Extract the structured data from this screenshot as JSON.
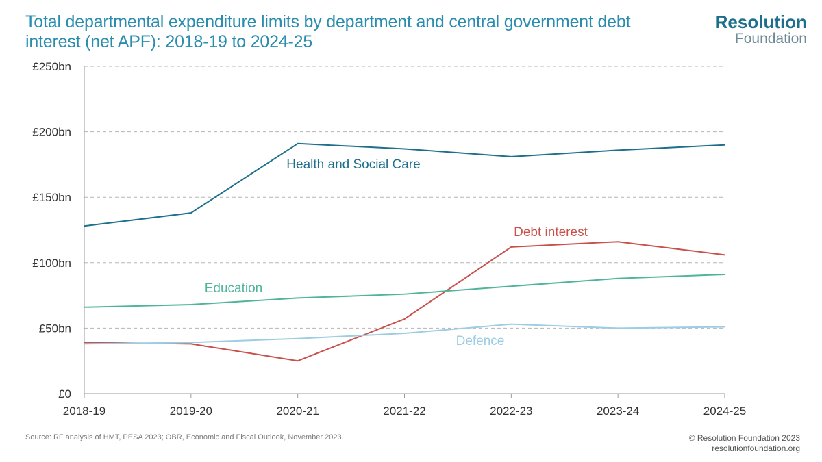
{
  "title": "Total departmental expenditure limits by department and central government debt interest (net APF): 2018-19 to 2024-25",
  "logo": {
    "line1": "Resolution",
    "line2": "Foundation"
  },
  "source": "Source: RF analysis of HMT, PESA 2023; OBR, Economic and Fiscal Outlook, November 2023.",
  "copyright": {
    "line1": "© Resolution Foundation 2023",
    "line2": "resolutionfoundation.org"
  },
  "chart_data": {
    "type": "line",
    "categories": [
      "2018-19",
      "2019-20",
      "2020-21",
      "2021-22",
      "2022-23",
      "2023-24",
      "2024-25"
    ],
    "ylim": [
      0,
      250
    ],
    "yticks": [
      0,
      50,
      100,
      150,
      200,
      250
    ],
    "ytick_labels": [
      "£0",
      "£50bn",
      "£100bn",
      "£150bn",
      "£200bn",
      "£250bn"
    ],
    "grid": true,
    "series": [
      {
        "name": "Health and Social Care",
        "color": "#1d6f8c",
        "values": [
          128,
          138,
          191,
          187,
          181,
          186,
          190
        ]
      },
      {
        "name": "Debt interest",
        "color": "#c9504b",
        "values": [
          39,
          38,
          25,
          57,
          112,
          116,
          106
        ]
      },
      {
        "name": "Education",
        "color": "#4fb59a",
        "values": [
          66,
          68,
          73,
          76,
          82,
          88,
          91
        ]
      },
      {
        "name": "Defence",
        "color": "#9ccde2",
        "values": [
          38,
          39,
          42,
          46,
          53,
          50,
          51
        ]
      }
    ]
  }
}
